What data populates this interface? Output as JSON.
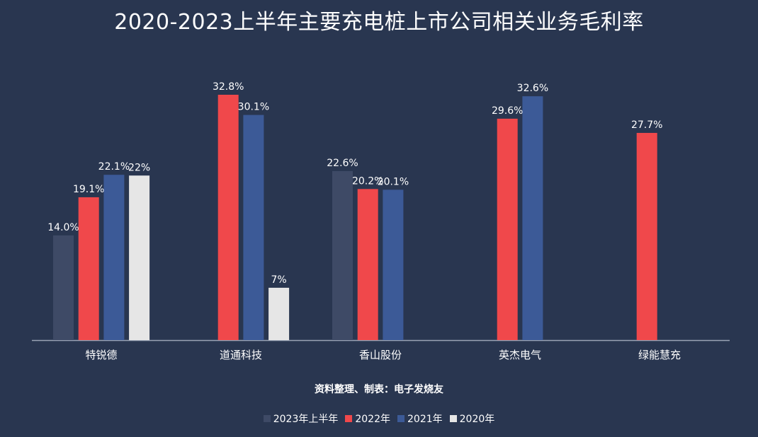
{
  "title": "2020-2023上半年主要充电桩上市公司相关业务毛利率",
  "source": "资料整理、制表：电子发烧友",
  "chart_data": {
    "type": "bar",
    "categories": [
      "特锐德",
      "道通科技",
      "香山股份",
      "英杰电气",
      "绿能慧充"
    ],
    "ylim": [
      0,
      36
    ],
    "series": [
      {
        "name": "2023年上半年",
        "color": "#3e4a66",
        "values": [
          14.0,
          null,
          22.6,
          null,
          null
        ],
        "labels": [
          "14.0%",
          null,
          "22.6%",
          null,
          null
        ]
      },
      {
        "name": "2022年",
        "color": "#f0484b",
        "values": [
          19.1,
          32.8,
          20.2,
          29.6,
          27.7
        ],
        "labels": [
          "19.1%",
          "32.8%",
          "20.2%",
          "29.6%",
          "27.7%"
        ]
      },
      {
        "name": "2021年",
        "color": "#3c5a97",
        "values": [
          22.1,
          30.1,
          20.1,
          32.6,
          null
        ],
        "labels": [
          "22.1%",
          "30.1%",
          "20.1%",
          "32.6%",
          null
        ]
      },
      {
        "name": "2020年",
        "color": "#e6e6e6",
        "values": [
          22,
          7,
          null,
          null,
          null
        ],
        "labels": [
          "22%",
          "7%",
          null,
          null,
          null
        ]
      }
    ],
    "legend_position": "bottom-center",
    "grid": false
  }
}
